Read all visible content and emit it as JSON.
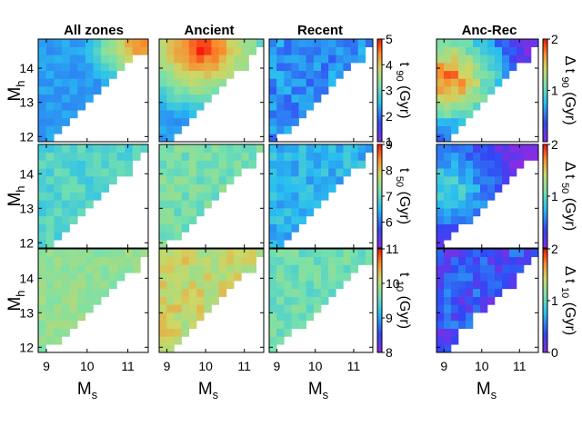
{
  "figure": {
    "column_titles": [
      "All zones",
      "Ancient",
      "Recent",
      "Anc-Rec"
    ],
    "x_axis_label": "M",
    "x_axis_subscript": "s",
    "y_axis_label": "M",
    "y_axis_subscript": "h",
    "x_ticks": [
      "9",
      "10",
      "11"
    ],
    "y_ticks": [
      "12",
      "13",
      "14"
    ]
  },
  "chart_data": {
    "type": "heatmap",
    "colormap": "rainbow",
    "x_range": [
      8.8,
      11.5
    ],
    "y_range": [
      11.85,
      14.85
    ],
    "x_ticks": [
      9,
      10,
      11
    ],
    "y_ticks": [
      12,
      13,
      14
    ],
    "xlabel": "Ms",
    "ylabel": "Mh",
    "rows": [
      {
        "row_label": "t90",
        "colorbar_left": {
          "label_base": "t",
          "label_sub": "90",
          "label_unit": "(Gyr)",
          "range": [
            1,
            5
          ],
          "ticks": [
            "1",
            "2",
            "3",
            "4",
            "5"
          ]
        },
        "colorbar_right": {
          "label_base": "Δ t",
          "label_sub": "90",
          "label_unit": "(Gyr)",
          "range": [
            0,
            2
          ],
          "ticks": [
            "1",
            "2"
          ]
        },
        "panels": [
          {
            "title": "All zones",
            "field": "radial",
            "center_ms": 11.3,
            "center_mh": 14.7,
            "value_at_center": 4.6,
            "falloff_per_dex": 1.6,
            "min": 2.3
          },
          {
            "title": "Ancient",
            "field": "radial",
            "center_ms": 9.9,
            "center_mh": 14.6,
            "value_at_center": 5.0,
            "falloff_per_dex": 1.3,
            "min": 2.3
          },
          {
            "title": "Recent",
            "field": "flat",
            "value": 2.2,
            "noise": 0.35
          },
          {
            "title": "Anc-Rec",
            "field": "ring",
            "center_ms": 9.1,
            "center_mh": 13.7,
            "value_at_center": 1.9,
            "falloff_per_dex": 0.8,
            "min": 0.1
          }
        ]
      },
      {
        "row_label": "t50",
        "colorbar_left": {
          "label_base": "t",
          "label_sub": "50",
          "label_unit": "(Gyr)",
          "range": [
            5,
            9
          ],
          "ticks": [
            "6",
            "7",
            "8",
            "9"
          ]
        },
        "colorbar_right": {
          "label_base": "Δ t",
          "label_sub": "50",
          "label_unit": "(Gyr)",
          "range": [
            0,
            2
          ],
          "ticks": [
            "1",
            "2"
          ]
        },
        "panels": [
          {
            "title": "All zones",
            "field": "flat",
            "value": 6.9,
            "noise": 0.25
          },
          {
            "title": "Ancient",
            "field": "flat",
            "value": 7.2,
            "noise": 0.3
          },
          {
            "title": "Recent",
            "field": "flat",
            "value": 6.5,
            "noise": 0.3
          },
          {
            "title": "Anc-Rec",
            "field": "ring",
            "center_ms": 9.1,
            "center_mh": 13.6,
            "value_at_center": 1.0,
            "falloff_per_dex": 0.45,
            "min": 0.05
          }
        ]
      },
      {
        "row_label": "t10",
        "colorbar_left": {
          "label_base": "t",
          "label_sub": "10",
          "label_unit": "(Gyr)",
          "range": [
            8,
            11
          ],
          "ticks": [
            "8",
            "9",
            "10",
            "11"
          ]
        },
        "colorbar_right": {
          "label_base": "Δ t",
          "label_sub": "10",
          "label_unit": "(Gyr)",
          "range": [
            0,
            2
          ],
          "ticks": [
            "0",
            "1",
            "2"
          ]
        },
        "panels": [
          {
            "title": "All zones",
            "field": "flat",
            "value": 9.8,
            "noise": 0.15
          },
          {
            "title": "Ancient",
            "field": "flat",
            "value": 10.1,
            "noise": 0.25
          },
          {
            "title": "Recent",
            "field": "flat",
            "value": 9.6,
            "noise": 0.2
          },
          {
            "title": "Anc-Rec",
            "field": "flat",
            "value": 0.35,
            "noise": 0.25
          }
        ]
      }
    ]
  }
}
